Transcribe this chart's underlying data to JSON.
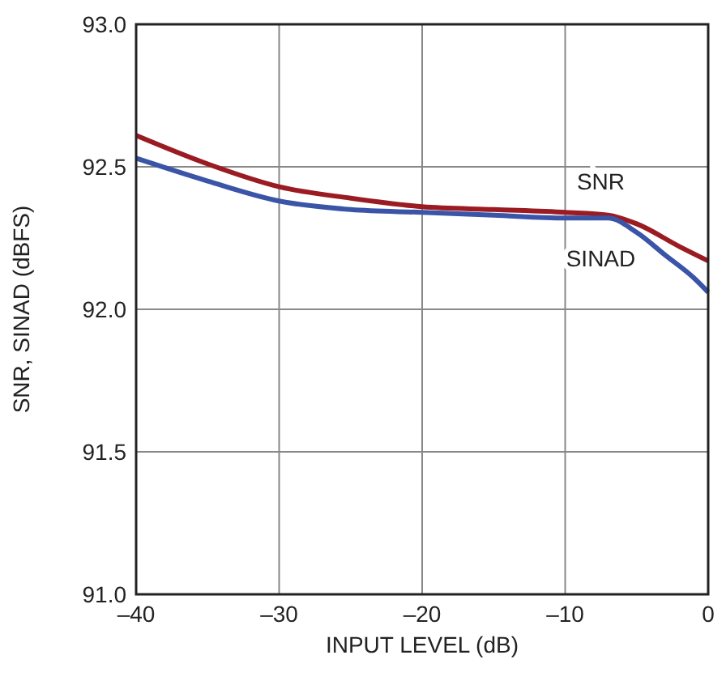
{
  "chart_data": {
    "type": "line",
    "xlabel": "INPUT LEVEL (dB)",
    "ylabel": "SNR, SINAD (dBFS)",
    "xlim": [
      -40,
      0
    ],
    "ylim": [
      91,
      93
    ],
    "xticks": [
      {
        "value": -40,
        "label": "–40"
      },
      {
        "value": -30,
        "label": "–30"
      },
      {
        "value": -20,
        "label": "–20"
      },
      {
        "value": -10,
        "label": "–10"
      },
      0
    ],
    "yticks": [
      {
        "value": 91,
        "label": "91.0"
      },
      {
        "value": 91.5,
        "label": "91.5"
      },
      {
        "value": 92,
        "label": "92.0"
      },
      {
        "value": 92.5,
        "label": "92.5"
      },
      {
        "value": 93,
        "label": "93.0"
      }
    ],
    "grid": true,
    "series": [
      {
        "name": "SNR",
        "color": "#9b1b23",
        "x": [
          -40,
          -35,
          -30,
          -25,
          -20,
          -15,
          -10,
          -7,
          -5,
          -2,
          0
        ],
        "values": [
          92.61,
          92.51,
          92.43,
          92.39,
          92.36,
          92.35,
          92.34,
          92.33,
          92.3,
          92.22,
          92.17
        ]
      },
      {
        "name": "SINAD",
        "color": "#3a54a8",
        "x": [
          -40,
          -35,
          -30,
          -25,
          -20,
          -15,
          -10,
          -7,
          -5,
          -3,
          -1,
          0
        ],
        "values": [
          92.53,
          92.45,
          92.38,
          92.35,
          92.34,
          92.33,
          92.32,
          92.32,
          92.27,
          92.19,
          92.11,
          92.06
        ]
      }
    ]
  }
}
